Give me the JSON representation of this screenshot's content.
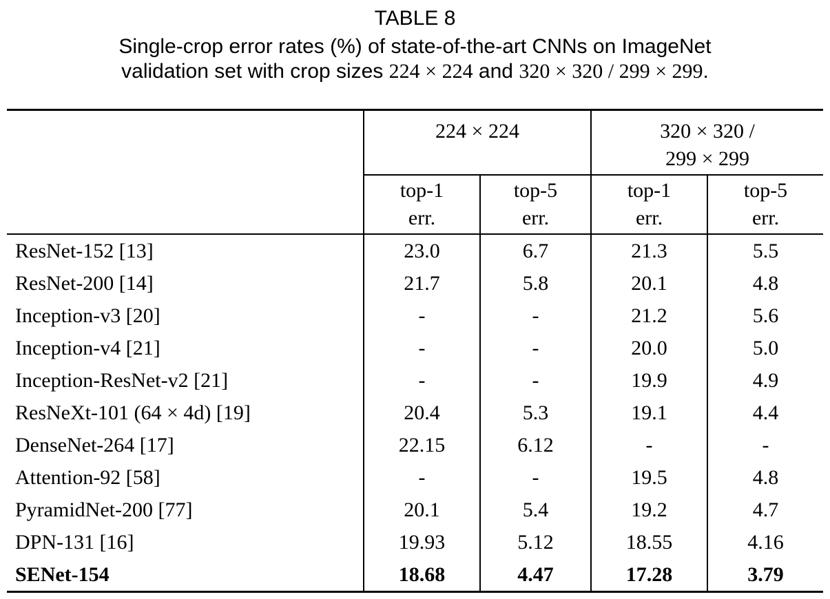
{
  "page": {
    "title": "TABLE 8",
    "caption": {
      "line1": "Single-crop error rates (%) of state-of-the-art CNNs on ImageNet",
      "line2_prefix": "validation set with crop sizes ",
      "crop_size_small": "224 × 224",
      "line2_and": " and ",
      "crop_size_large": "320 × 320 / 299 × 299",
      "line2_end": "."
    },
    "colors": {
      "text": "#000000",
      "background": "#ffffff",
      "rule": "#000000"
    }
  },
  "table": {
    "column_groups": [
      {
        "label": "224 × 224"
      },
      {
        "label_line1": "320 × 320 /",
        "label_line2": "299 × 299"
      }
    ],
    "sub_headers": [
      {
        "line1": "top-1",
        "line2": "err."
      },
      {
        "line1": "top-5",
        "line2": "err."
      },
      {
        "line1": "top-1",
        "line2": "err."
      },
      {
        "line1": "top-5",
        "line2": "err."
      }
    ],
    "rows": [
      {
        "model": "ResNet-152 [13]",
        "values": [
          "23.0",
          "6.7",
          "21.3",
          "5.5"
        ]
      },
      {
        "model": "ResNet-200 [14]",
        "values": [
          "21.7",
          "5.8",
          "20.1",
          "4.8"
        ]
      },
      {
        "model": "Inception-v3 [20]",
        "values": [
          "-",
          "-",
          "21.2",
          "5.6"
        ]
      },
      {
        "model": "Inception-v4 [21]",
        "values": [
          "-",
          "-",
          "20.0",
          "5.0"
        ]
      },
      {
        "model": "Inception-ResNet-v2 [21]",
        "values": [
          "-",
          "-",
          "19.9",
          "4.9"
        ]
      },
      {
        "model": "ResNeXt-101 (64 × 4d) [19]",
        "values": [
          "20.4",
          "5.3",
          "19.1",
          "4.4"
        ]
      },
      {
        "model": "DenseNet-264 [17]",
        "values": [
          "22.15",
          "6.12",
          "-",
          "-"
        ]
      },
      {
        "model": "Attention-92 [58]",
        "values": [
          "-",
          "-",
          "19.5",
          "4.8"
        ]
      },
      {
        "model": "PyramidNet-200 [77]",
        "values": [
          "20.1",
          "5.4",
          "19.2",
          "4.7"
        ]
      },
      {
        "model": "DPN-131 [16]",
        "values": [
          "19.93",
          "5.12",
          "18.55",
          "4.16"
        ]
      },
      {
        "model": "SENet-154",
        "values": [
          "18.68",
          "4.47",
          "17.28",
          "3.79"
        ]
      }
    ]
  }
}
